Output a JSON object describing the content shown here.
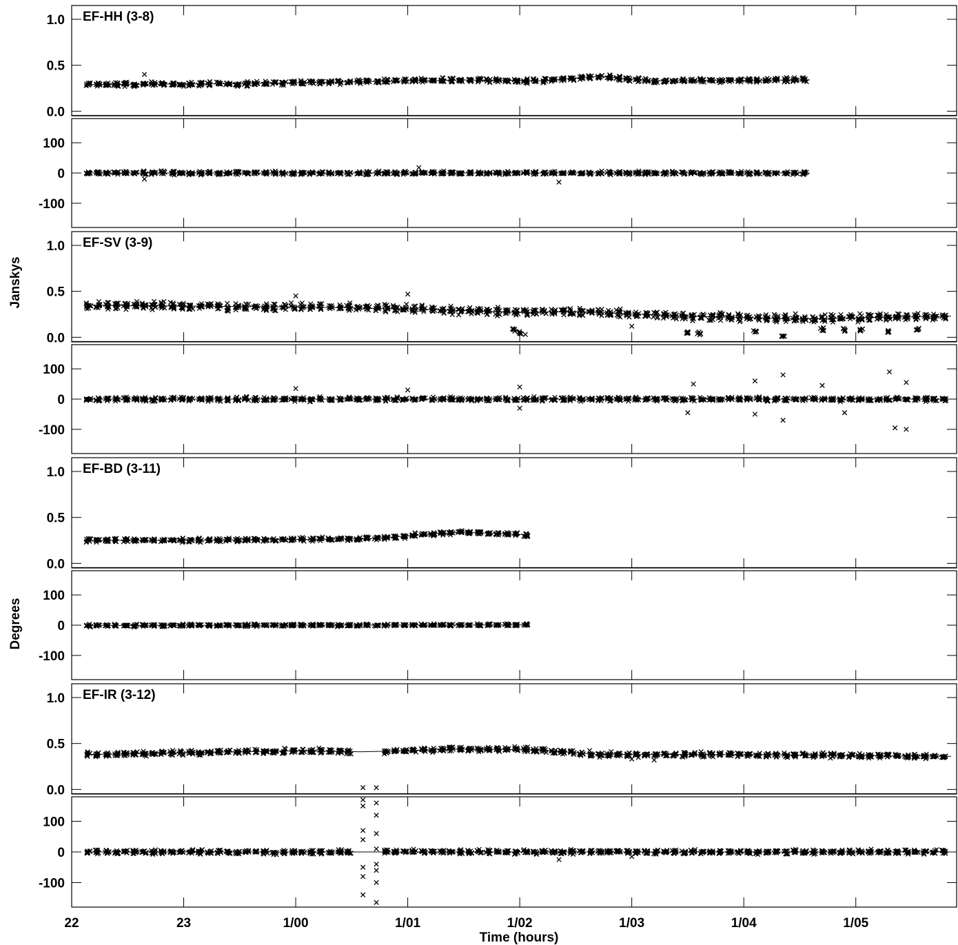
{
  "chart_data": {
    "type": "scatter",
    "xlabel": "Time (hours)",
    "ylabel_amplitude": "Janskys",
    "ylabel_phase": "Degrees",
    "x_unit": "hours",
    "x_range": [
      22.0,
      29.9
    ],
    "x_ticks": [
      {
        "value": 22,
        "label": "22"
      },
      {
        "value": 23,
        "label": "23"
      },
      {
        "value": 24,
        "label": "1/00"
      },
      {
        "value": 25,
        "label": "1/01"
      },
      {
        "value": 26,
        "label": "1/02"
      },
      {
        "value": 27,
        "label": "1/03"
      },
      {
        "value": 28,
        "label": "1/04"
      },
      {
        "value": 29,
        "label": "1/05"
      }
    ],
    "amp_range": [
      -0.05,
      1.15
    ],
    "amp_ticks": [
      "1.0",
      "0.5",
      "0.0"
    ],
    "amp_tick_values": [
      1.0,
      0.5,
      0.0
    ],
    "phase_range": [
      -180,
      180
    ],
    "phase_ticks": [
      "100",
      "0",
      "-100"
    ],
    "phase_tick_values": [
      100,
      0,
      -100
    ],
    "marker": "x",
    "baselines": [
      {
        "title": "EF-HH (3-8)",
        "t_start": 22.15,
        "t_end": 28.6,
        "amp_model": [
          [
            22.15,
            0.29
          ],
          [
            23.5,
            0.3
          ],
          [
            24.5,
            0.32
          ],
          [
            25.5,
            0.34
          ],
          [
            26.2,
            0.33
          ],
          [
            26.7,
            0.38
          ],
          [
            27.2,
            0.33
          ],
          [
            28.6,
            0.34
          ]
        ],
        "amp_scatter": 0.035,
        "phase_model": [
          [
            22.15,
            0
          ],
          [
            28.6,
            0
          ]
        ],
        "phase_scatter": 8,
        "amp_gaps": [],
        "phase_outliers": [
          [
            22.65,
            -20
          ],
          [
            26.35,
            -30
          ],
          [
            25.1,
            18
          ]
        ],
        "amp_outliers": [
          [
            22.65,
            0.4
          ],
          [
            23.0,
            0.27
          ]
        ],
        "dips": []
      },
      {
        "title": "EF-SV (3-9)",
        "t_start": 22.15,
        "t_end": 29.85,
        "amp_model": [
          [
            22.15,
            0.35
          ],
          [
            23.0,
            0.34
          ],
          [
            24.0,
            0.33
          ],
          [
            25.0,
            0.31
          ],
          [
            26.0,
            0.27
          ],
          [
            26.5,
            0.28
          ],
          [
            27.5,
            0.23
          ],
          [
            28.5,
            0.2
          ],
          [
            29.85,
            0.23
          ]
        ],
        "amp_scatter": 0.06,
        "phase_model": [
          [
            22.15,
            0
          ],
          [
            29.85,
            0
          ]
        ],
        "phase_scatter": 10,
        "amp_gaps": [],
        "phase_outliers": [
          [
            27.5,
            -45
          ],
          [
            27.55,
            50
          ],
          [
            28.1,
            60
          ],
          [
            28.1,
            -50
          ],
          [
            28.35,
            80
          ],
          [
            28.35,
            -70
          ],
          [
            28.7,
            45
          ],
          [
            29.3,
            90
          ],
          [
            29.35,
            -95
          ],
          [
            29.45,
            -100
          ],
          [
            29.45,
            55
          ],
          [
            26.0,
            40
          ],
          [
            26.0,
            -30
          ],
          [
            24.0,
            35
          ],
          [
            25.0,
            30
          ],
          [
            28.9,
            -45
          ]
        ],
        "amp_outliers": [
          [
            24.0,
            0.45
          ],
          [
            25.0,
            0.47
          ],
          [
            27.0,
            0.12
          ],
          [
            26.05,
            0.03
          ]
        ],
        "dips": [
          [
            25.95,
            0.08
          ],
          [
            26.0,
            0.04
          ],
          [
            27.5,
            0.05
          ],
          [
            27.6,
            0.04
          ],
          [
            28.1,
            0.07
          ],
          [
            28.35,
            0.02
          ],
          [
            28.7,
            0.09
          ],
          [
            28.9,
            0.08
          ],
          [
            29.05,
            0.08
          ],
          [
            29.3,
            0.06
          ],
          [
            29.55,
            0.08
          ]
        ]
      },
      {
        "title": "EF-BD (3-11)",
        "t_start": 22.15,
        "t_end": 26.1,
        "amp_model": [
          [
            22.15,
            0.25
          ],
          [
            23.0,
            0.25
          ],
          [
            24.0,
            0.26
          ],
          [
            24.7,
            0.27
          ],
          [
            25.2,
            0.32
          ],
          [
            25.5,
            0.34
          ],
          [
            26.1,
            0.31
          ]
        ],
        "amp_scatter": 0.03,
        "phase_model": [
          [
            22.15,
            -1
          ],
          [
            26.1,
            1
          ]
        ],
        "phase_scatter": 6,
        "amp_gaps": [],
        "phase_outliers": [],
        "amp_outliers": [],
        "dips": []
      },
      {
        "title": "EF-IR (3-12)",
        "t_start": 22.15,
        "t_end": 29.85,
        "amp_model": [
          [
            22.15,
            0.38
          ],
          [
            23.0,
            0.4
          ],
          [
            24.0,
            0.42
          ],
          [
            24.6,
            0.41
          ],
          [
            25.5,
            0.44
          ],
          [
            26.2,
            0.43
          ],
          [
            26.7,
            0.38
          ],
          [
            28.0,
            0.38
          ],
          [
            29.85,
            0.36
          ]
        ],
        "amp_scatter": 0.04,
        "phase_model": [
          [
            22.15,
            0
          ],
          [
            29.85,
            0
          ]
        ],
        "phase_scatter": 10,
        "amp_gaps": [
          [
            24.55,
            24.75
          ]
        ],
        "phase_outliers": [
          [
            24.6,
            170
          ],
          [
            24.6,
            150
          ],
          [
            24.6,
            70
          ],
          [
            24.6,
            40
          ],
          [
            24.6,
            -50
          ],
          [
            24.6,
            -80
          ],
          [
            24.6,
            -140
          ],
          [
            24.72,
            160
          ],
          [
            24.72,
            120
          ],
          [
            24.72,
            60
          ],
          [
            24.72,
            10
          ],
          [
            24.72,
            -40
          ],
          [
            24.72,
            -60
          ],
          [
            24.72,
            -100
          ],
          [
            24.72,
            -165
          ],
          [
            26.35,
            -25
          ],
          [
            27.0,
            -15
          ]
        ],
        "amp_outliers": [
          [
            24.6,
            0.02
          ],
          [
            24.72,
            0.02
          ],
          [
            27.2,
            0.32
          ],
          [
            27.0,
            0.33
          ]
        ],
        "dips": []
      }
    ]
  }
}
